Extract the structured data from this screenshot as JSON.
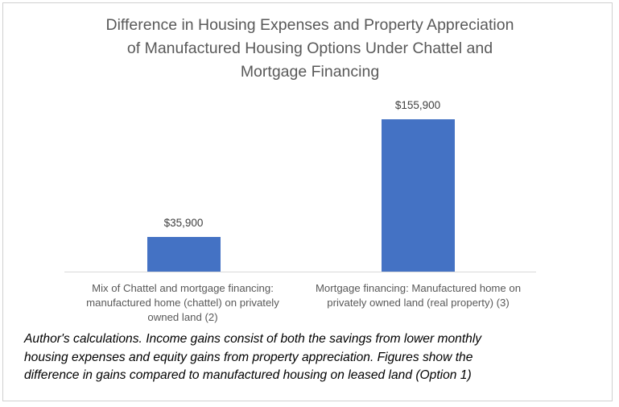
{
  "chart_data": {
    "type": "bar",
    "title": "Difference in Housing Expenses and Property Appreciation of Manufactured Housing Options Under Chattel and Mortgage Financing",
    "title_lines": [
      "Difference in Housing Expenses and Property Appreciation",
      "of Manufactured Housing Options Under Chattel and",
      "Mortgage Financing"
    ],
    "categories": [
      "Mix of Chattel and mortgage financing: manufactured home (chattel) on privately owned land (2)",
      "Mortgage financing: Manufactured home on privately owned land (real property) (3)"
    ],
    "category_lines": [
      [
        "Mix of Chattel and mortgage financing:",
        "manufactured home (chattel) on privately",
        "owned land (2)"
      ],
      [
        "Mortgage financing: Manufactured home on",
        "privately owned land (real property) (3)"
      ]
    ],
    "values": [
      35900,
      155900
    ],
    "data_labels": [
      "$35,900",
      "$155,900"
    ],
    "xlabel": "",
    "ylabel": "",
    "ylim": [
      0,
      180000
    ],
    "grid": false,
    "legend": null,
    "bar_color": "#4472c4",
    "annotation": "Author's calculations. Income gains consist of both the savings from lower monthly housing expenses and  equity gains from property appreciation. Figures show the difference in gains compared to manufactured housing on leased land (Option 1)",
    "annotation_lines": [
      "Author's calculations. Income gains consist of both the savings from lower monthly",
      "housing expenses and  equity gains from property appreciation. Figures show the",
      "difference in gains compared to manufactured housing on leased land (Option 1)"
    ]
  }
}
